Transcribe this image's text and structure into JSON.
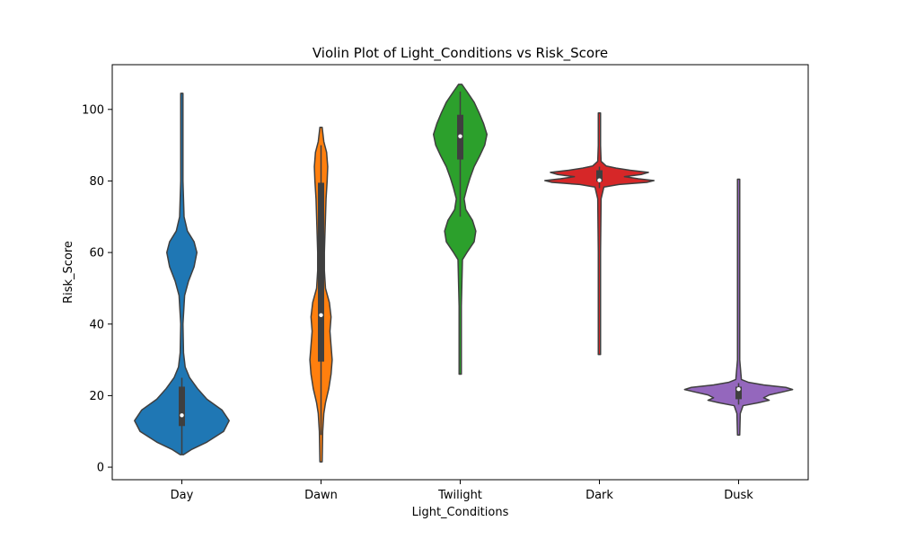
{
  "chart_data": {
    "type": "violin",
    "title": "Violin Plot of Light_Conditions vs Risk_Score",
    "xlabel": "Light_Conditions",
    "ylabel": "Risk_Score",
    "categories": [
      "Day",
      "Dawn",
      "Twilight",
      "Dark",
      "Dusk"
    ],
    "ylim": [
      -3.5,
      112.5
    ],
    "yticks": [
      0,
      20,
      40,
      60,
      80,
      100
    ],
    "grid": false,
    "violins": [
      {
        "category": "Day",
        "color": "#1f77b4",
        "min": 3.5,
        "max": 104.5,
        "q1": 11.5,
        "median": 14.5,
        "q3": 22.5,
        "whisker_low": 3.5,
        "whisker_high": 25,
        "density": [
          [
            3.5,
            0.03
          ],
          [
            5,
            0.18
          ],
          [
            7,
            0.45
          ],
          [
            10,
            0.75
          ],
          [
            13,
            0.85
          ],
          [
            16,
            0.72
          ],
          [
            19,
            0.45
          ],
          [
            22,
            0.28
          ],
          [
            25,
            0.14
          ],
          [
            28,
            0.06
          ],
          [
            32,
            0.03
          ],
          [
            40,
            0.02
          ],
          [
            48,
            0.05
          ],
          [
            52,
            0.12
          ],
          [
            56,
            0.22
          ],
          [
            60,
            0.27
          ],
          [
            63,
            0.22
          ],
          [
            66,
            0.1
          ],
          [
            70,
            0.04
          ],
          [
            80,
            0.02
          ],
          [
            104.5,
            0.02
          ]
        ]
      },
      {
        "category": "Dawn",
        "color": "#ff7f0e",
        "min": 1.5,
        "max": 95,
        "q1": 29.5,
        "median": 42.5,
        "q3": 79.5,
        "whisker_low": 9,
        "whisker_high": 90,
        "density": [
          [
            1.5,
            0.02
          ],
          [
            10,
            0.03
          ],
          [
            15,
            0.05
          ],
          [
            18,
            0.08
          ],
          [
            22,
            0.14
          ],
          [
            26,
            0.18
          ],
          [
            30,
            0.2
          ],
          [
            34,
            0.18
          ],
          [
            38,
            0.16
          ],
          [
            42,
            0.18
          ],
          [
            46,
            0.15
          ],
          [
            50,
            0.08
          ],
          [
            55,
            0.06
          ],
          [
            60,
            0.06
          ],
          [
            65,
            0.07
          ],
          [
            70,
            0.08
          ],
          [
            75,
            0.09
          ],
          [
            80,
            0.11
          ],
          [
            84,
            0.12
          ],
          [
            88,
            0.1
          ],
          [
            91,
            0.05
          ],
          [
            95,
            0.02
          ]
        ]
      },
      {
        "category": "Twilight",
        "color": "#2ca02c",
        "min": 26,
        "max": 107,
        "q1": 86,
        "median": 92.5,
        "q3": 98.5,
        "whisker_low": 70,
        "whisker_high": 105,
        "density": [
          [
            26,
            0.02
          ],
          [
            45,
            0.02
          ],
          [
            58,
            0.04
          ],
          [
            60,
            0.12
          ],
          [
            63,
            0.25
          ],
          [
            66,
            0.28
          ],
          [
            69,
            0.22
          ],
          [
            72,
            0.1
          ],
          [
            75,
            0.07
          ],
          [
            78,
            0.12
          ],
          [
            81,
            0.18
          ],
          [
            84,
            0.25
          ],
          [
            87,
            0.35
          ],
          [
            90,
            0.44
          ],
          [
            93,
            0.48
          ],
          [
            96,
            0.42
          ],
          [
            99,
            0.34
          ],
          [
            102,
            0.25
          ],
          [
            105,
            0.12
          ],
          [
            107,
            0.03
          ]
        ]
      },
      {
        "category": "Dark",
        "color": "#d62728",
        "min": 31.5,
        "max": 99,
        "q1": 79.8,
        "median": 80.2,
        "q3": 83,
        "whisker_low": 78,
        "whisker_high": 84,
        "density": [
          [
            31.5,
            0.02
          ],
          [
            60,
            0.02
          ],
          [
            75,
            0.03
          ],
          [
            78.3,
            0.08
          ],
          [
            79,
            0.35
          ],
          [
            79.6,
            0.85
          ],
          [
            80.1,
            0.98
          ],
          [
            80.6,
            0.7
          ],
          [
            81.2,
            0.45
          ],
          [
            81.8,
            0.75
          ],
          [
            82.4,
            0.88
          ],
          [
            83,
            0.55
          ],
          [
            83.6,
            0.3
          ],
          [
            84.2,
            0.12
          ],
          [
            85.5,
            0.03
          ],
          [
            90,
            0.02
          ],
          [
            99,
            0.02
          ]
        ]
      },
      {
        "category": "Dusk",
        "color": "#9467bd",
        "min": 9,
        "max": 80.5,
        "q1": 19,
        "median": 21.8,
        "q3": 22.5,
        "whisker_low": 17.5,
        "whisker_high": 23.5,
        "density": [
          [
            9,
            0.02
          ],
          [
            15,
            0.03
          ],
          [
            17.2,
            0.08
          ],
          [
            18,
            0.35
          ],
          [
            18.7,
            0.55
          ],
          [
            19.4,
            0.45
          ],
          [
            20.2,
            0.55
          ],
          [
            21,
            0.78
          ],
          [
            21.7,
            0.97
          ],
          [
            22.3,
            0.85
          ],
          [
            23,
            0.45
          ],
          [
            23.7,
            0.18
          ],
          [
            24.5,
            0.05
          ],
          [
            30,
            0.02
          ],
          [
            80.5,
            0.02
          ]
        ]
      }
    ]
  }
}
